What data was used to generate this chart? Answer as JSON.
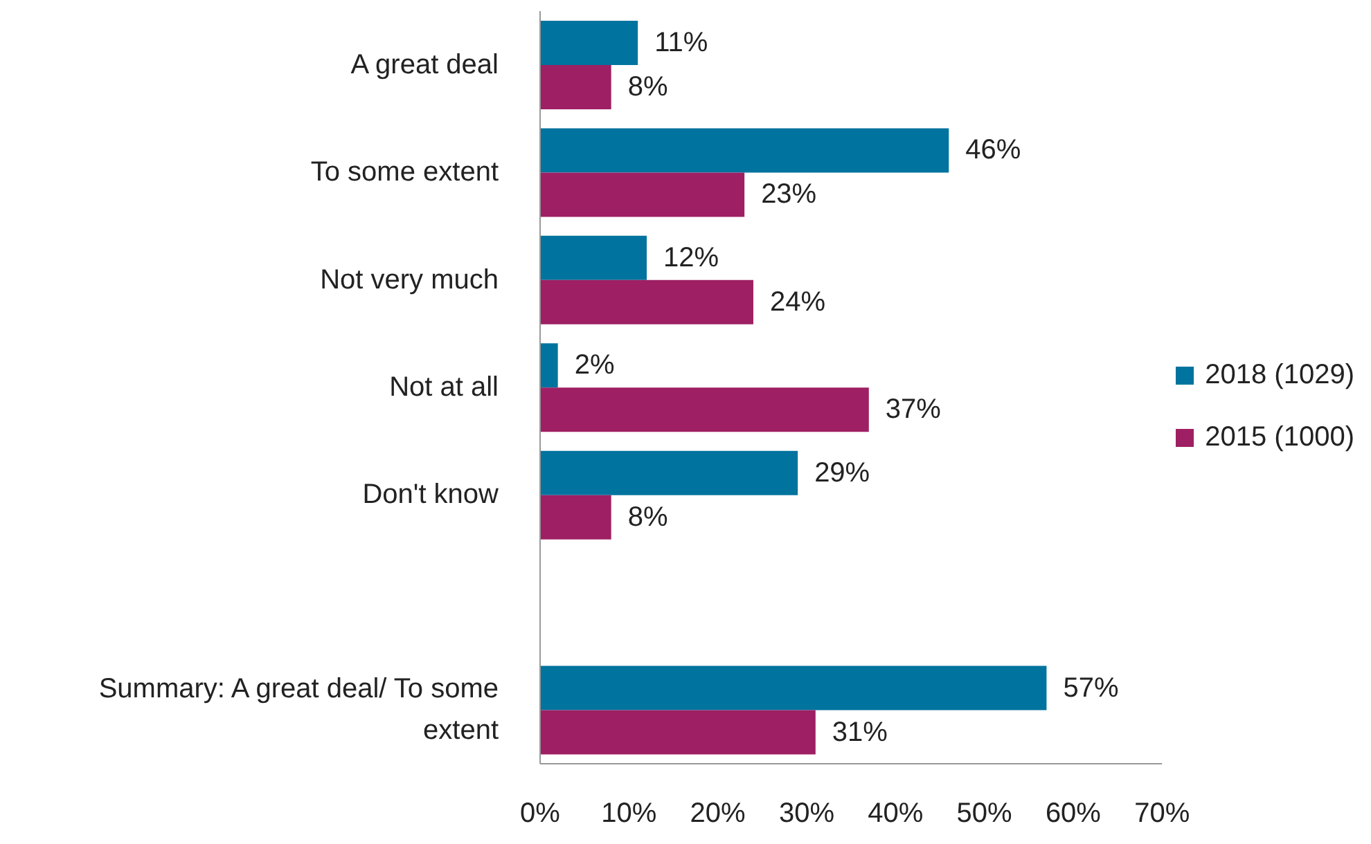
{
  "chart_data": {
    "type": "bar",
    "orientation": "horizontal",
    "categories": [
      "A great deal",
      "To some extent",
      "Not very much",
      "Not at all",
      "Don't know",
      null,
      "Summary: A great deal/ To some extent"
    ],
    "series": [
      {
        "name": "2018 (1029)",
        "color": "#00739e",
        "values": [
          11,
          46,
          12,
          2,
          29,
          null,
          57
        ],
        "value_labels": [
          "11%",
          "46%",
          "12%",
          "2%",
          "29%",
          null,
          "57%"
        ]
      },
      {
        "name": "2015 (1000)",
        "color": "#9e1f63",
        "values": [
          8,
          23,
          24,
          37,
          8,
          null,
          31
        ],
        "value_labels": [
          "8%",
          "23%",
          "24%",
          "37%",
          "8%",
          null,
          "31%"
        ]
      }
    ],
    "xlim": [
      0,
      70
    ],
    "xticks": [
      {
        "value": 0,
        "label": "0%"
      },
      {
        "value": 10,
        "label": "10%"
      },
      {
        "value": 20,
        "label": "20%"
      },
      {
        "value": 30,
        "label": "30%"
      },
      {
        "value": 40,
        "label": "40%"
      },
      {
        "value": 50,
        "label": "50%"
      },
      {
        "value": 60,
        "label": "60%"
      },
      {
        "value": 70,
        "label": "70%"
      }
    ],
    "grid": false,
    "legend": "right"
  }
}
